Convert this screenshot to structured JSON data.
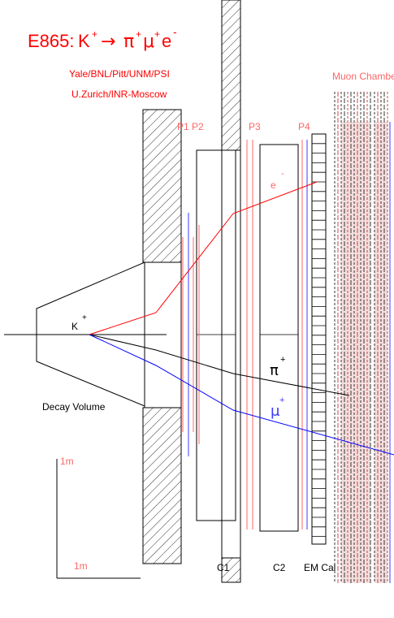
{
  "title": {
    "experiment": "E865:",
    "K": "K",
    "Kplus": "+",
    "arrow": "→",
    "pi": "π",
    "piplus": "+",
    "mu": "μ",
    "muplus": "+",
    "e": "e",
    "eminus": "-"
  },
  "collaboration_line1": "Yale/BNL/Pitt/UNM/PSI",
  "collaboration_line2": "U.Zurich/INR-Moscow",
  "labels": {
    "kaon": "K",
    "kaon_sup": "+",
    "decay_volume": "Decay Volume",
    "p1p2": "P1 P2",
    "p3": "P3",
    "p4": "P4",
    "c1": "C1",
    "c2": "C2",
    "em_cal": "EM Cal",
    "muon_chambers": "Muon Chambers",
    "electron": "e",
    "electron_sup": "-",
    "pion": "π",
    "pion_sup": "+",
    "muon": "μ",
    "muon_sup": "+",
    "scale_v": "1m",
    "scale_h": "1m"
  },
  "colors": {
    "title": "#ff0000",
    "chamber_label": "#ff6666",
    "electron_track": "#ff0000",
    "muon_track": "#0000ff",
    "pion_track": "#000000",
    "structure": "#000000"
  }
}
